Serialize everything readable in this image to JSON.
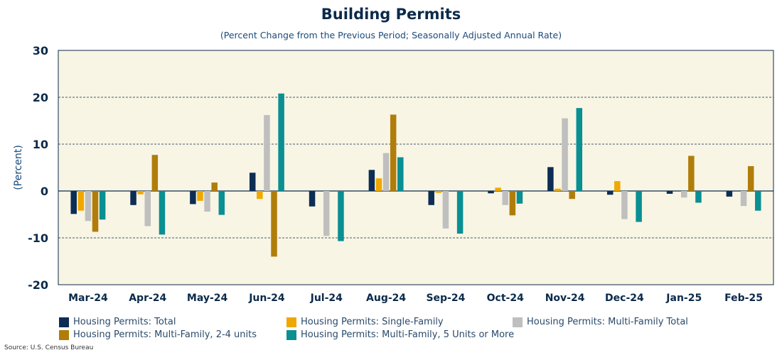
{
  "chart_data": {
    "type": "bar",
    "title": "Building Permits",
    "subtitle": "(Percent Change from the Previous Period; Seasonally Adjusted Annual Rate)",
    "ylabel": "(Percent)",
    "xlabel": "",
    "ylim": [
      -20,
      30
    ],
    "yticks": [
      -20,
      -10,
      0,
      10,
      20,
      30
    ],
    "grid": true,
    "legend_position": "bottom",
    "source": "Source: U.S. Census Bureau",
    "plot_bg": "#f8f5e4",
    "categories": [
      "Mar-24",
      "Apr-24",
      "May-24",
      "Jun-24",
      "Jul-24",
      "Aug-24",
      "Sep-24",
      "Oct-24",
      "Nov-24",
      "Dec-24",
      "Jan-25",
      "Feb-25"
    ],
    "series": [
      {
        "name": "Housing Permits: Total",
        "color": "#0d2d55",
        "values": [
          -4.9,
          -3.0,
          -2.8,
          3.9,
          -3.3,
          4.5,
          -3.0,
          -0.5,
          5.1,
          -0.8,
          -0.6,
          -1.2
        ]
      },
      {
        "name": "Housing Permits: Single-Family",
        "color": "#f0a800",
        "values": [
          -4.2,
          -0.7,
          -2.1,
          -1.7,
          0.0,
          2.7,
          -0.4,
          0.7,
          0.5,
          2.1,
          0.0,
          0.0
        ]
      },
      {
        "name": "Housing Permits: Multi-Family Total",
        "color": "#bfbfbf",
        "values": [
          -6.4,
          -7.5,
          -4.4,
          16.2,
          -9.6,
          8.1,
          -8.0,
          -3.0,
          15.5,
          -6.0,
          -1.4,
          -3.2
        ]
      },
      {
        "name": "Housing Permits: Multi-Family, 2-4 units",
        "color": "#b07d0a",
        "values": [
          -8.7,
          7.7,
          1.8,
          -14.0,
          0.0,
          16.3,
          0.0,
          -5.2,
          -1.7,
          0.0,
          7.5,
          5.3
        ]
      },
      {
        "name": "Housing Permits: Multi-Family, 5 Units or More",
        "color": "#0a8f93",
        "values": [
          -6.1,
          -9.3,
          -5.1,
          20.8,
          -10.7,
          7.2,
          -9.1,
          -2.7,
          17.7,
          -6.6,
          -2.5,
          -4.2
        ]
      }
    ]
  }
}
